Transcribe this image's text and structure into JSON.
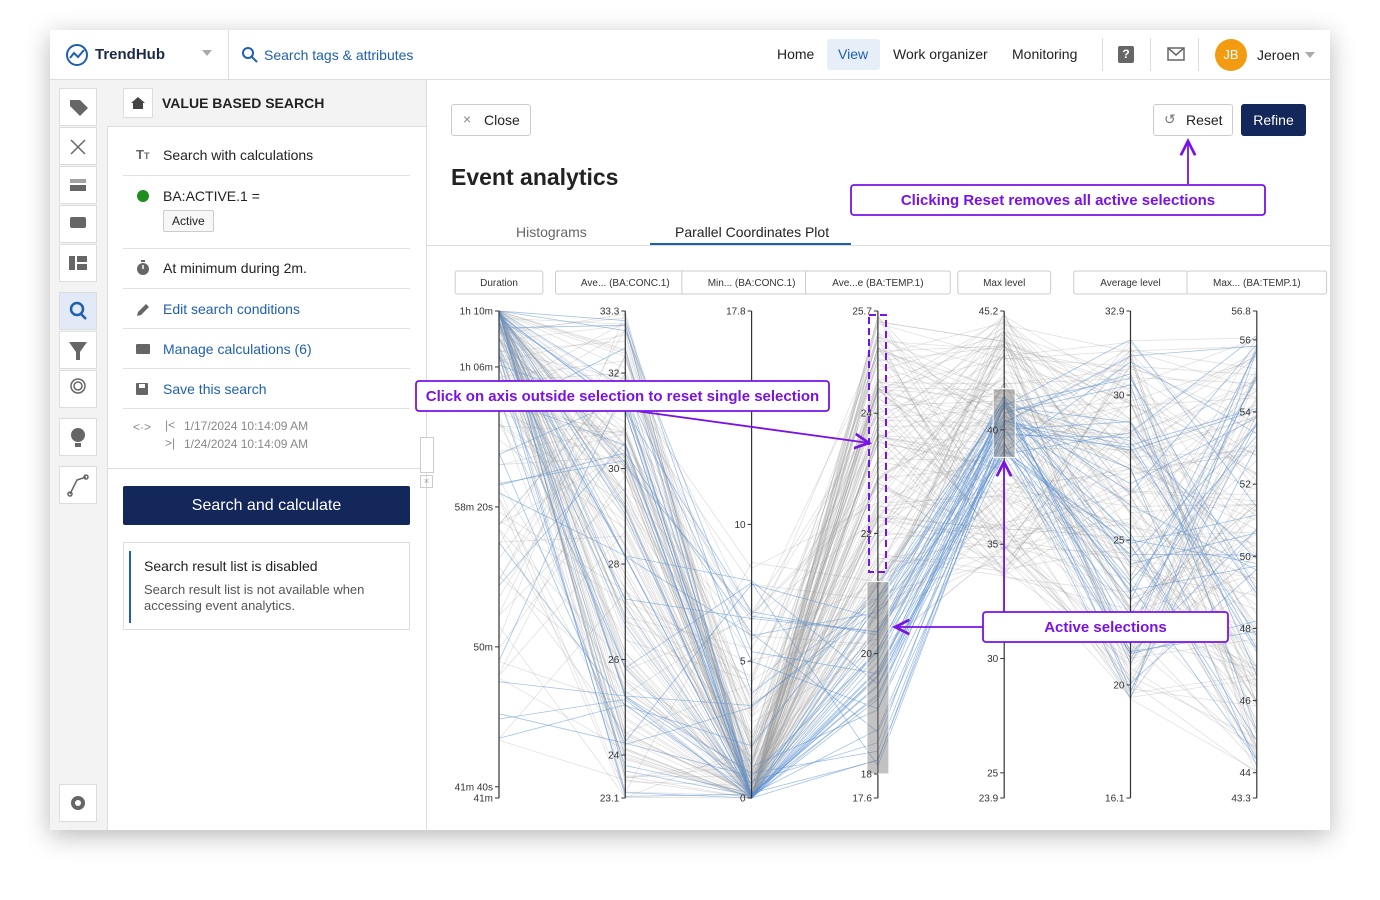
{
  "header": {
    "logo": "TrendHub",
    "search_placeholder": "Search tags & attributes",
    "nav": [
      "Home",
      "View",
      "Work organizer",
      "Monitoring"
    ],
    "user_initials": "JB",
    "user_name": "Jeroen"
  },
  "panel": {
    "title": "VALUE BASED SEARCH",
    "search_type": "Search with calculations",
    "condition": "BA:ACTIVE.1 =",
    "condition_value": "Active",
    "duration_condition": "At minimum during 2m.",
    "actions": [
      "Edit search conditions",
      "Manage calculations (6)",
      "Save this search"
    ],
    "start": "1/17/2024 10:14:09 AM",
    "end": "1/24/2024 10:14:09 AM",
    "search_button": "Search and calculate",
    "notice": {
      "title": "Search result list is disabled",
      "text": "Search result list is not available when accessing event analytics."
    }
  },
  "main": {
    "close": "Close",
    "reset": "Reset",
    "refine": "Refine",
    "title": "Event analytics",
    "tabs": [
      "Histograms",
      "Parallel Coordinates Plot"
    ],
    "annotations": [
      "Clicking Reset removes all active selections",
      "Click on axis outside selection to reset single selection",
      "Active selections"
    ]
  },
  "chart_data": {
    "type": "parallel",
    "axes": [
      {
        "label": "Duration",
        "ylim": [
          41,
          70
        ],
        "yticks": [
          {
            "value": 70,
            "label": "1h 10m"
          },
          {
            "value": 66.667,
            "label": "1h 06m"
          },
          {
            "value": 58.333,
            "label": "58m 20s"
          },
          {
            "value": 50,
            "label": "50m"
          },
          {
            "value": 41.667,
            "label": "41m 40s"
          },
          {
            "value": 41,
            "label": "41m"
          }
        ]
      },
      {
        "label": "Ave... (BA:CONC.1)",
        "ylim": [
          23.1,
          33.3
        ],
        "yticks": [
          24,
          26,
          28,
          30,
          32
        ]
      },
      {
        "label": "Min... (BA:CONC.1)",
        "ylim": [
          0,
          17.8
        ],
        "yticks": [
          5,
          10
        ]
      },
      {
        "label": "Ave...e (BA:TEMP.1)",
        "ylim": [
          17.6,
          25.7
        ],
        "yticks": [
          18,
          20,
          22,
          24
        ],
        "selection": [
          18,
          21.2
        ]
      },
      {
        "label": "Max level",
        "ylim": [
          23.9,
          45.2
        ],
        "yticks": [
          25,
          30,
          35,
          40
        ],
        "selection": [
          38.8,
          41.8
        ]
      },
      {
        "label": "Average level",
        "ylim": [
          16.1,
          32.9
        ],
        "yticks": [
          20,
          25,
          30
        ]
      },
      {
        "label": "Max... (BA:TEMP.1)",
        "ylim": [
          43.3,
          56.8
        ],
        "yticks": [
          44,
          46,
          48,
          50,
          52,
          54,
          56
        ]
      }
    ]
  }
}
